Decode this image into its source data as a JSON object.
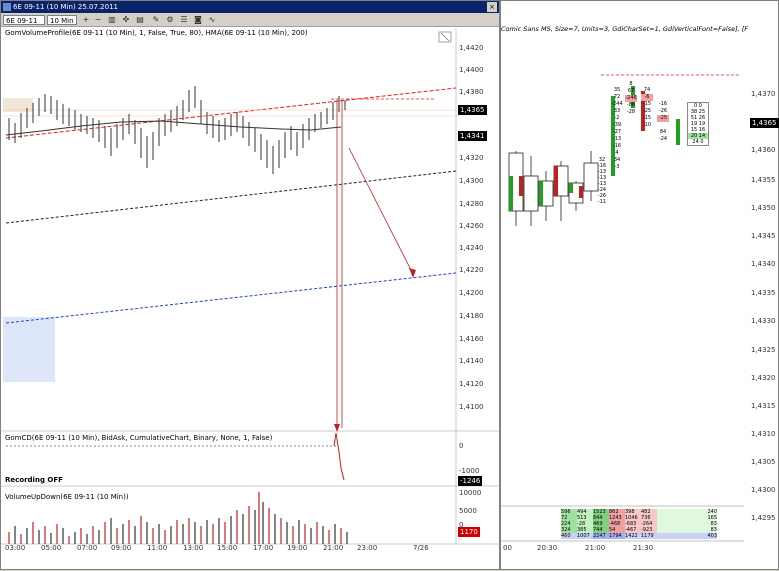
{
  "window": {
    "title": "6E 09-11 (10 Min) 25.07.2011",
    "instrument_select": "6E 09-11",
    "interval_select": "10 Min"
  },
  "indicators": {
    "main_label": "GomVolumeProfile(6E 09-11 (10 Min), 1, False, True, 80), HMA(6E 09-11 (10 Min), 200)",
    "cd_label": "GomCD(6E 09-11 (10 Min), BidAsk, CumulativeChart, Binary, None, 1, False)",
    "recording_label": "Recording OFF",
    "vol_label": "VolumeUpDown(6E 09-11 (10 Min))"
  },
  "price_axis": [
    "1,4420",
    "1,4400",
    "1,4380",
    "1,4360",
    "1,4340",
    "1,4320",
    "1,4300",
    "1,4280",
    "1,4260",
    "1,4240",
    "1,4220",
    "1,4200",
    "1,4180",
    "1,4160",
    "1,4140",
    "1,4120",
    "1,4100"
  ],
  "price_badges": {
    "last": "1,4365",
    "hma": "1,4341"
  },
  "cd_axis": [
    "0",
    "-1000"
  ],
  "cd_badge": "-1246",
  "vol_axis": [
    "10000",
    "5000",
    "0"
  ],
  "vol_badge": "1170",
  "time_axis": [
    "03:00",
    "05:00",
    "07:00",
    "09:00",
    "11:00",
    "13:00",
    "15:00",
    "17:00",
    "19:00",
    "21:00",
    "23:00",
    "7/26"
  ],
  "right_chart": {
    "header": "Comic Sans MS, Size=7, Units=3, GdiCharSet=1, GdiVerticalFont=False], [F",
    "price_axis": [
      "1,4370",
      "1,4365",
      "1,4360",
      "1,4355",
      "1,4350",
      "1,4345",
      "1,4340",
      "1,4335",
      "1,4330",
      "1,4325",
      "1,4320",
      "1,4315",
      "1,4310",
      "1,4305",
      "1,4300",
      "1,4295"
    ],
    "price_badge": "1,4365",
    "time_axis": [
      "20:30",
      "21:00",
      "21:30"
    ],
    "footprint_a": [
      "35",
      "72",
      "-244",
      "33",
      "-2",
      "-39",
      "-27",
      "-13",
      "-16",
      "4",
      "34",
      "-3"
    ],
    "footprint_b": [
      "8",
      "67",
      "-246",
      "-86",
      "-28"
    ],
    "footprint_c": [
      "74",
      "-6",
      "-15",
      "-25",
      "-15",
      "-10"
    ],
    "footprint_d": [
      "-16",
      "-26",
      "-25"
    ],
    "footprint_e": [
      "84",
      "-24"
    ],
    "footprint_f": [
      "0 0",
      "38 25",
      "51 26",
      "19 19",
      "15 16",
      "20 14",
      "24 0"
    ],
    "footprint_g": [
      "32",
      "-16",
      "-13",
      "-13",
      "-13",
      "-24",
      "-26",
      "-11"
    ],
    "table_rows": [
      [
        "596",
        "494",
        "1523",
        "862",
        "398",
        "482",
        "240"
      ],
      [
        "72",
        "513",
        "844",
        "1243",
        "1046",
        "736",
        "165"
      ],
      [
        "224",
        "-28",
        "469",
        "-468",
        "-683",
        "-264",
        "83"
      ],
      [
        "324",
        "385",
        "744",
        "54",
        "-467",
        "-923",
        "83"
      ],
      [
        "460",
        "1007",
        "2247",
        "1794",
        "1422",
        "1179",
        "403"
      ]
    ]
  }
}
